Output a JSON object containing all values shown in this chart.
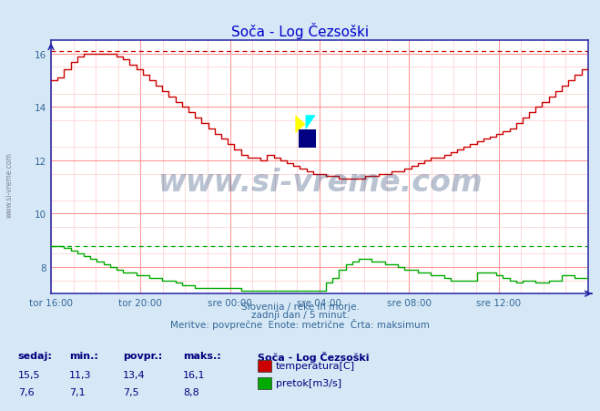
{
  "title": "Soča - Log Čezsoški",
  "bg_color": "#d6e8f5",
  "plot_bg_color": "#ffffff",
  "x_labels": [
    "tor 16:00",
    "tor 20:00",
    "sre 00:00",
    "sre 04:00",
    "sre 08:00",
    "sre 12:00"
  ],
  "ylim_min": 7.0,
  "ylim_max": 16.5,
  "y_ticks": [
    8,
    10,
    12,
    14,
    16
  ],
  "temp_max_line": 16.1,
  "flow_max_line": 8.8,
  "title_color": "#0000cc",
  "title_fontsize": 11,
  "tick_color": "#336699",
  "subtitle_lines": [
    "Slovenija / reke in morje.",
    "zadnji dan / 5 minut.",
    "Meritve: povprečne  Enote: metrične  Črta: maksimum"
  ],
  "legend_title": "Soča - Log Čezsoški",
  "legend_items": [
    "temperatura[C]",
    "pretok[m3/s]"
  ],
  "legend_colors": [
    "#cc0000",
    "#00aa00"
  ],
  "stats_headers": [
    "sedaj:",
    "min.:",
    "povpr.:",
    "maks.:"
  ],
  "stats_temp": [
    "15,5",
    "11,3",
    "13,4",
    "16,1"
  ],
  "stats_flow": [
    "7,6",
    "7,1",
    "7,5",
    "8,8"
  ],
  "watermark": "www.si-vreme.com",
  "watermark_color": "#1a3a6a",
  "watermark_alpha": 0.3,
  "temp_color": "#cc0000",
  "flow_color": "#00aa00",
  "temp_y": [
    15.0,
    15.1,
    15.4,
    15.7,
    15.9,
    16.0,
    16.0,
    16.0,
    16.0,
    16.0,
    15.9,
    15.8,
    15.6,
    15.4,
    15.2,
    15.0,
    14.8,
    14.6,
    14.4,
    14.2,
    14.0,
    13.8,
    13.6,
    13.4,
    13.2,
    13.0,
    12.8,
    12.6,
    12.4,
    12.2,
    12.1,
    12.1,
    12.0,
    12.2,
    12.1,
    12.0,
    11.9,
    11.8,
    11.7,
    11.6,
    11.5,
    11.5,
    11.4,
    11.4,
    11.3,
    11.3,
    11.3,
    11.3,
    11.4,
    11.4,
    11.5,
    11.5,
    11.6,
    11.6,
    11.7,
    11.8,
    11.9,
    12.0,
    12.1,
    12.1,
    12.2,
    12.3,
    12.4,
    12.5,
    12.6,
    12.7,
    12.8,
    12.9,
    13.0,
    13.1,
    13.2,
    13.4,
    13.6,
    13.8,
    14.0,
    14.2,
    14.4,
    14.6,
    14.8,
    15.0,
    15.2,
    15.4,
    15.5
  ],
  "flow_y": [
    8.8,
    8.8,
    8.7,
    8.6,
    8.5,
    8.4,
    8.3,
    8.2,
    8.1,
    8.0,
    7.9,
    7.8,
    7.8,
    7.7,
    7.7,
    7.6,
    7.6,
    7.5,
    7.5,
    7.4,
    7.3,
    7.3,
    7.2,
    7.2,
    7.2,
    7.2,
    7.2,
    7.2,
    7.2,
    7.1,
    7.1,
    7.1,
    7.1,
    7.1,
    7.1,
    7.1,
    7.1,
    7.1,
    7.1,
    7.1,
    7.1,
    7.1,
    7.4,
    7.6,
    7.9,
    8.1,
    8.2,
    8.3,
    8.3,
    8.2,
    8.2,
    8.1,
    8.1,
    8.0,
    7.9,
    7.9,
    7.8,
    7.8,
    7.7,
    7.7,
    7.6,
    7.5,
    7.5,
    7.5,
    7.5,
    7.8,
    7.8,
    7.8,
    7.7,
    7.6,
    7.5,
    7.4,
    7.5,
    7.5,
    7.4,
    7.4,
    7.5,
    7.5,
    7.7,
    7.7,
    7.6,
    7.6,
    7.6
  ]
}
